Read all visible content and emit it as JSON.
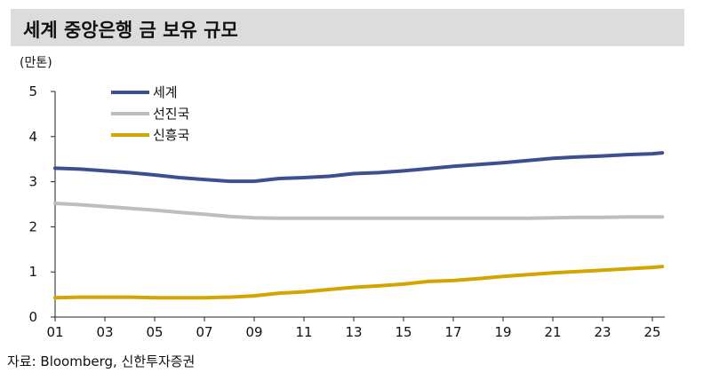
{
  "header": {
    "title": "세계 중앙은행 금 보유 규모"
  },
  "unit": "(만톤)",
  "source": "자료: Bloomberg, 신한투자증권",
  "colors": {
    "world": "#3e4f8f",
    "developed": "#bdbdbd",
    "emerging": "#d4a500",
    "title_bg": "#dcdcdc"
  },
  "chart_data": {
    "type": "line",
    "title": "세계 중앙은행 금 보유 규모",
    "ylabel": "(만톤)",
    "xlabel": "",
    "ylim": [
      0,
      5
    ],
    "xlim": [
      2001,
      2025.5
    ],
    "y_ticks": [
      "0",
      "1",
      "2",
      "3",
      "4",
      "5"
    ],
    "x_ticks": [
      "01",
      "03",
      "05",
      "07",
      "09",
      "11",
      "13",
      "15",
      "17",
      "19",
      "21",
      "23",
      "25"
    ],
    "x_tick_years": [
      2001,
      2003,
      2005,
      2007,
      2009,
      2011,
      2013,
      2015,
      2017,
      2019,
      2021,
      2023,
      2025
    ],
    "legend_position": "top-left",
    "x": [
      2001,
      2002,
      2003,
      2004,
      2005,
      2006,
      2007,
      2008,
      2009,
      2010,
      2011,
      2012,
      2013,
      2014,
      2015,
      2016,
      2017,
      2018,
      2019,
      2020,
      2021,
      2022,
      2023,
      2024,
      2025,
      2025.4
    ],
    "series": [
      {
        "name": "세계",
        "color_key": "world",
        "values": [
          3.3,
          3.28,
          3.24,
          3.2,
          3.15,
          3.09,
          3.05,
          3.01,
          3.01,
          3.07,
          3.09,
          3.12,
          3.18,
          3.2,
          3.24,
          3.29,
          3.34,
          3.38,
          3.42,
          3.47,
          3.52,
          3.55,
          3.57,
          3.6,
          3.62,
          3.64
        ]
      },
      {
        "name": "선진국",
        "color_key": "developed",
        "values": [
          2.52,
          2.49,
          2.45,
          2.41,
          2.37,
          2.32,
          2.28,
          2.23,
          2.2,
          2.19,
          2.19,
          2.19,
          2.19,
          2.19,
          2.19,
          2.19,
          2.19,
          2.19,
          2.19,
          2.19,
          2.2,
          2.21,
          2.21,
          2.22,
          2.22,
          2.22
        ]
      },
      {
        "name": "신흥국",
        "color_key": "emerging",
        "values": [
          0.43,
          0.44,
          0.44,
          0.44,
          0.43,
          0.43,
          0.43,
          0.44,
          0.47,
          0.53,
          0.56,
          0.61,
          0.66,
          0.69,
          0.73,
          0.79,
          0.81,
          0.85,
          0.9,
          0.94,
          0.98,
          1.01,
          1.04,
          1.07,
          1.1,
          1.12
        ]
      }
    ]
  }
}
